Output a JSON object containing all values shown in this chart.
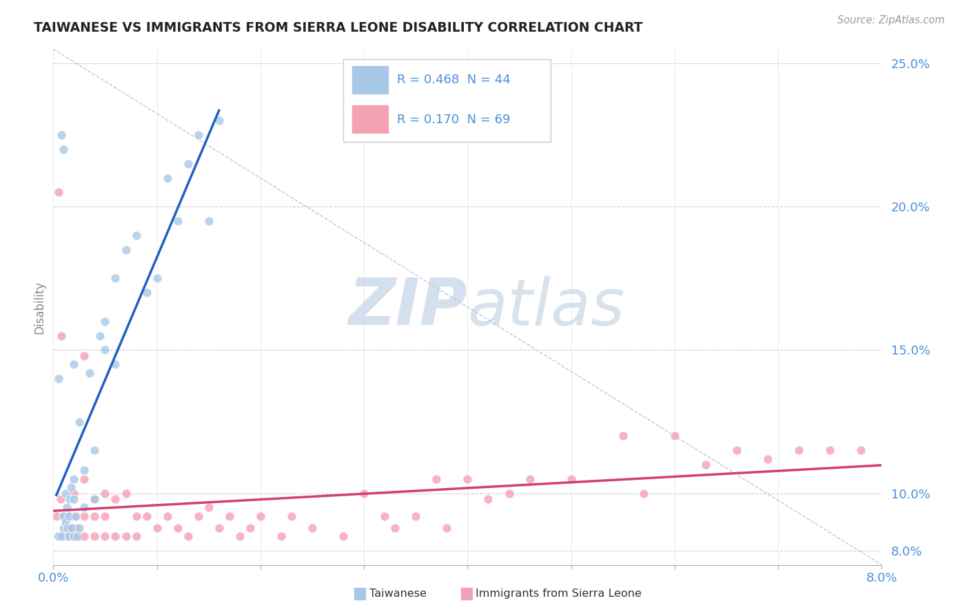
{
  "title": "TAIWANESE VS IMMIGRANTS FROM SIERRA LEONE DISABILITY CORRELATION CHART",
  "source": "Source: ZipAtlas.com",
  "ylabel": "Disability",
  "xlim": [
    0.0,
    0.08
  ],
  "ylim": [
    0.075,
    0.255
  ],
  "yticks": [
    0.08,
    0.1,
    0.15,
    0.2,
    0.25
  ],
  "ytick_labels": [
    "8.0%",
    "10.0%",
    "15.0%",
    "20.0%",
    "25.0%"
  ],
  "legend_R_tw": "0.468",
  "legend_N_tw": "44",
  "legend_R_sl": "0.170",
  "legend_N_sl": "69",
  "taiwanese_color": "#a8c8e8",
  "sierraleone_color": "#f4a0b5",
  "regression_taiwanese_color": "#2060c0",
  "regression_sierraleone_color": "#d04070",
  "watermark_zip": "ZIP",
  "watermark_atlas": "atlas",
  "background_color": "#ffffff",
  "grid_color": "#cccccc",
  "tick_color": "#4a90d9",
  "tw_x": [
    0.0005,
    0.0008,
    0.001,
    0.001,
    0.0012,
    0.0012,
    0.0013,
    0.0014,
    0.0015,
    0.0015,
    0.0016,
    0.0017,
    0.0018,
    0.002,
    0.002,
    0.002,
    0.0022,
    0.0023,
    0.0025,
    0.0025,
    0.003,
    0.003,
    0.0035,
    0.004,
    0.004,
    0.0045,
    0.005,
    0.005,
    0.006,
    0.006,
    0.007,
    0.008,
    0.009,
    0.01,
    0.011,
    0.012,
    0.013,
    0.014,
    0.015,
    0.016,
    0.0005,
    0.0008,
    0.001,
    0.002
  ],
  "tw_y": [
    0.085,
    0.085,
    0.088,
    0.092,
    0.09,
    0.1,
    0.095,
    0.088,
    0.085,
    0.092,
    0.098,
    0.102,
    0.088,
    0.085,
    0.098,
    0.105,
    0.092,
    0.085,
    0.088,
    0.125,
    0.095,
    0.108,
    0.142,
    0.098,
    0.115,
    0.155,
    0.15,
    0.16,
    0.175,
    0.145,
    0.185,
    0.19,
    0.17,
    0.175,
    0.21,
    0.195,
    0.215,
    0.225,
    0.195,
    0.23,
    0.14,
    0.225,
    0.22,
    0.145
  ],
  "sl_x": [
    0.0003,
    0.0005,
    0.0007,
    0.001,
    0.001,
    0.0012,
    0.0013,
    0.0015,
    0.0015,
    0.0017,
    0.002,
    0.002,
    0.002,
    0.0022,
    0.0025,
    0.003,
    0.003,
    0.003,
    0.004,
    0.004,
    0.004,
    0.005,
    0.005,
    0.005,
    0.006,
    0.006,
    0.007,
    0.007,
    0.008,
    0.008,
    0.009,
    0.01,
    0.011,
    0.012,
    0.013,
    0.014,
    0.015,
    0.016,
    0.017,
    0.018,
    0.019,
    0.02,
    0.022,
    0.023,
    0.025,
    0.028,
    0.03,
    0.032,
    0.033,
    0.035,
    0.037,
    0.038,
    0.04,
    0.042,
    0.044,
    0.046,
    0.05,
    0.055,
    0.057,
    0.06,
    0.063,
    0.066,
    0.069,
    0.072,
    0.075,
    0.078,
    0.0005,
    0.0008,
    0.003
  ],
  "sl_y": [
    0.092,
    0.085,
    0.098,
    0.085,
    0.092,
    0.085,
    0.088,
    0.085,
    0.092,
    0.088,
    0.085,
    0.092,
    0.1,
    0.088,
    0.085,
    0.085,
    0.092,
    0.105,
    0.085,
    0.092,
    0.098,
    0.085,
    0.092,
    0.1,
    0.085,
    0.098,
    0.085,
    0.1,
    0.085,
    0.092,
    0.092,
    0.088,
    0.092,
    0.088,
    0.085,
    0.092,
    0.095,
    0.088,
    0.092,
    0.085,
    0.088,
    0.092,
    0.085,
    0.092,
    0.088,
    0.085,
    0.1,
    0.092,
    0.088,
    0.092,
    0.105,
    0.088,
    0.105,
    0.098,
    0.1,
    0.105,
    0.105,
    0.12,
    0.1,
    0.12,
    0.11,
    0.115,
    0.112,
    0.115,
    0.115,
    0.115,
    0.205,
    0.155,
    0.148
  ]
}
